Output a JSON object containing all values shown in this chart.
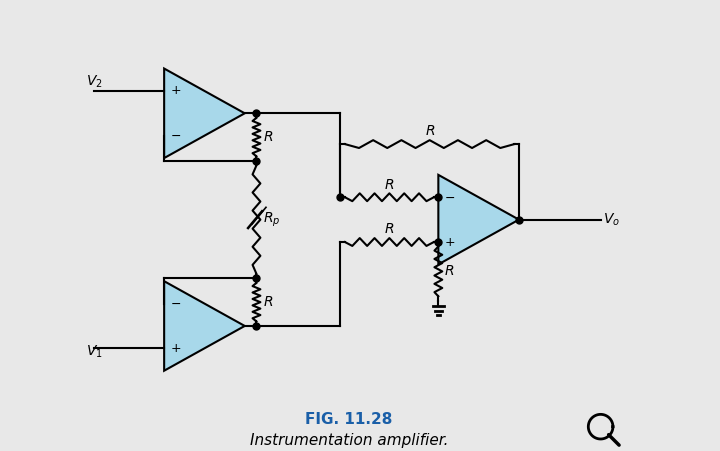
{
  "bg_color": "#e8e8e8",
  "op_amp_fill": "#a8d8ea",
  "wire_color": "#000000",
  "title": "FIG. 11.28",
  "subtitle": "Instrumentation amplifier.",
  "title_color": "#1a5fa8",
  "title_fontsize": 11,
  "subtitle_fontsize": 11,
  "label_fontsize": 10,
  "lw": 1.5,
  "dot_size": 5
}
